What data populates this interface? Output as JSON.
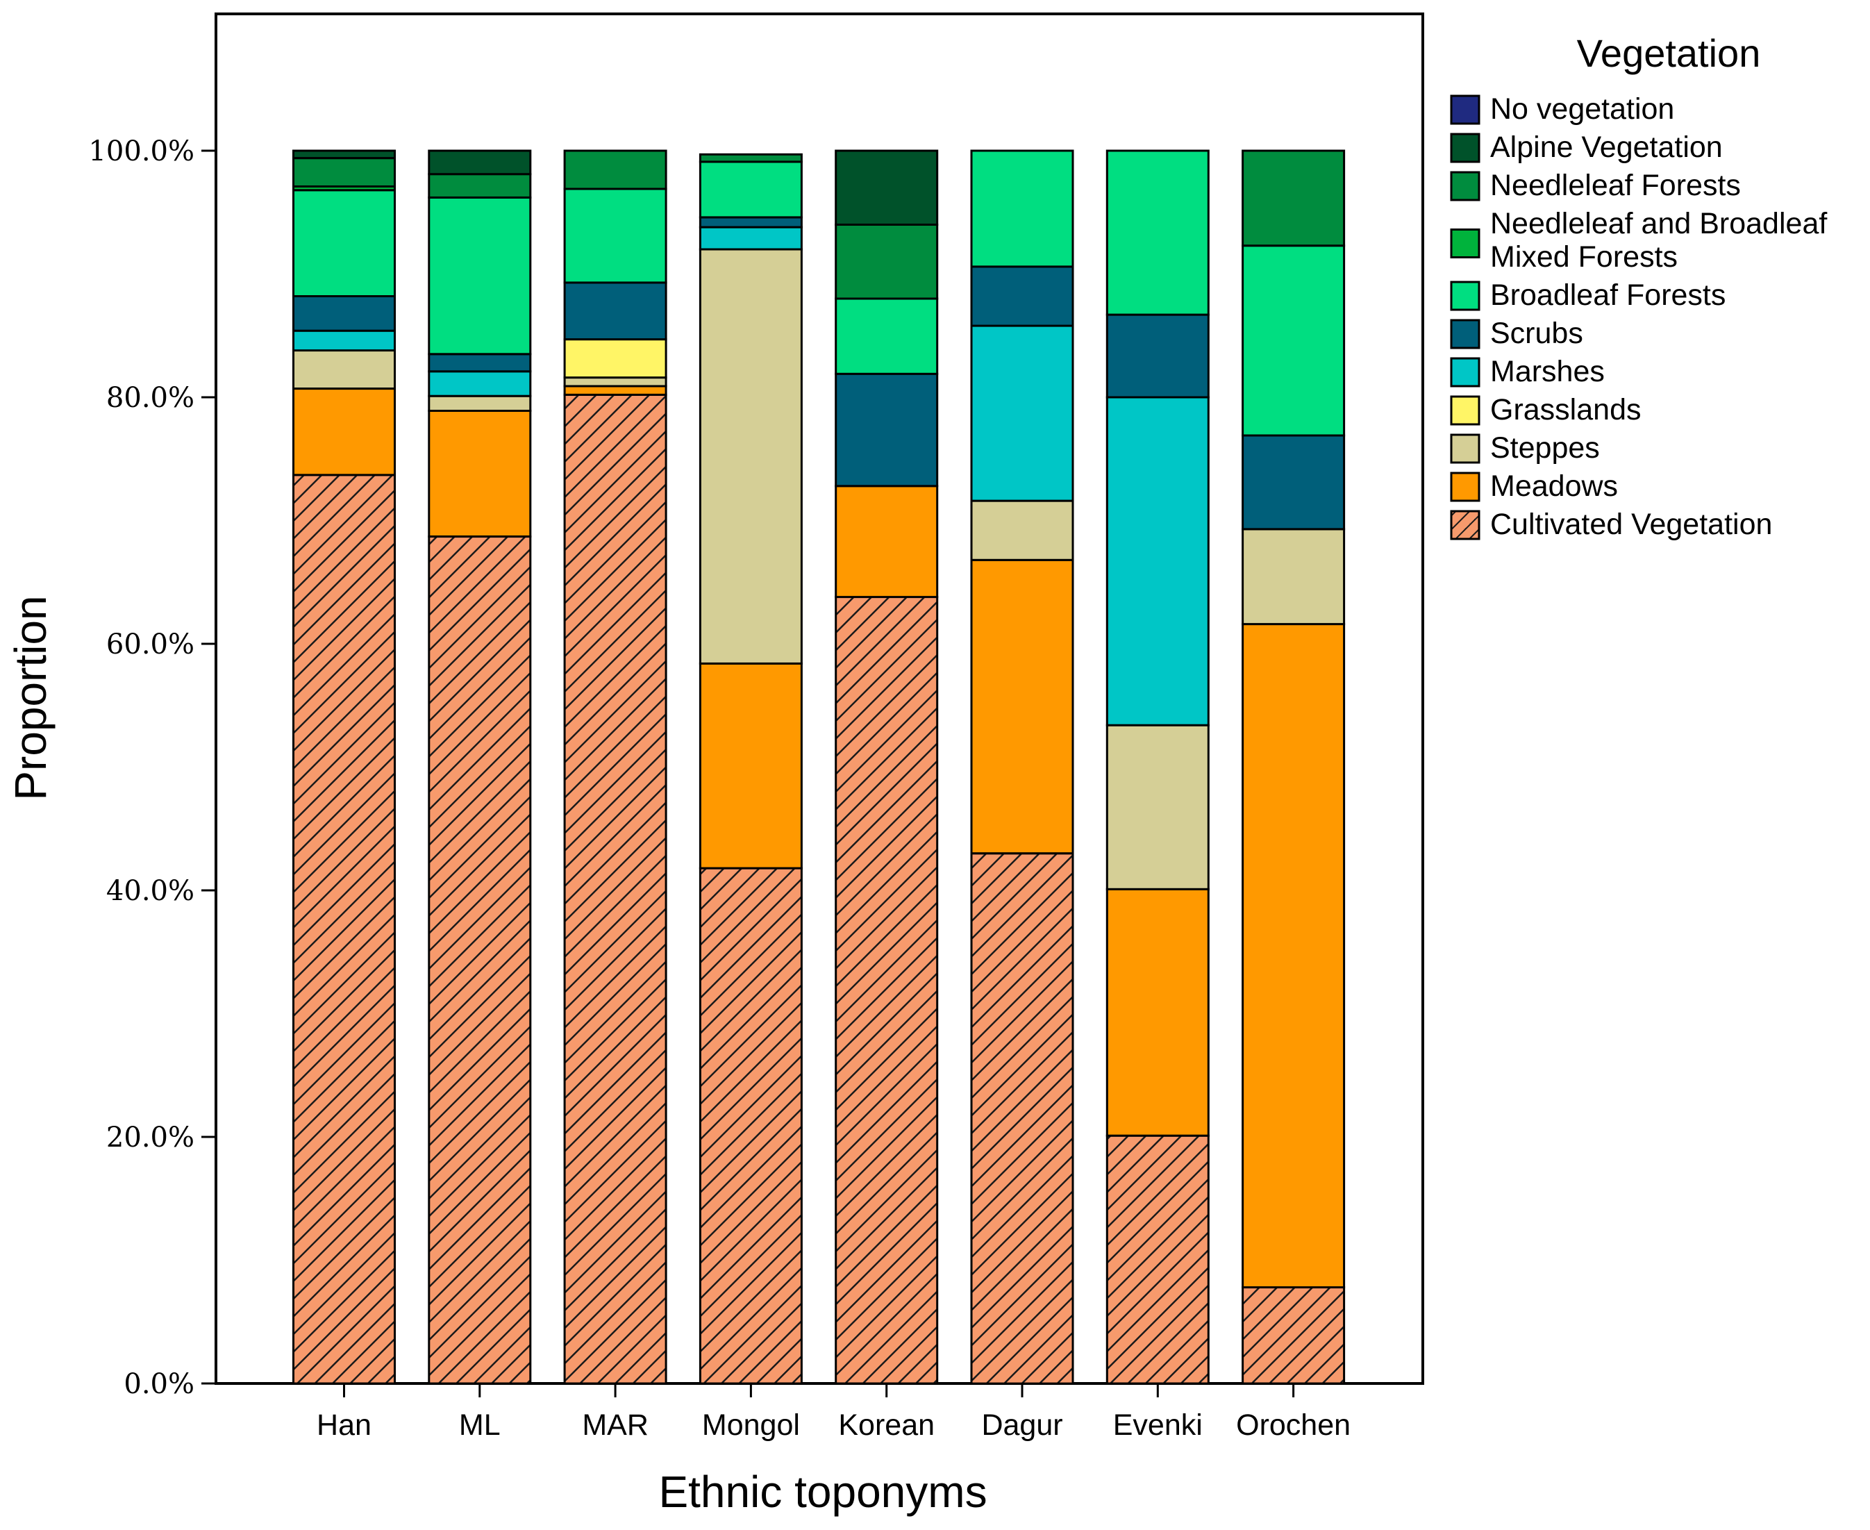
{
  "chart_data": {
    "type": "bar",
    "stacked": true,
    "xlabel": "Ethnic toponyms",
    "ylabel": "Proportion",
    "ylim": [
      0,
      100
    ],
    "yticks": [
      0,
      20,
      40,
      60,
      80,
      100
    ],
    "ytick_labels": [
      "0.0%",
      "20.0%",
      "40.0%",
      "60.0%",
      "80.0%",
      "100.0%"
    ],
    "categories": [
      "Han",
      "ML",
      "MAR",
      "Mongol",
      "Korean",
      "Dagur",
      "Evenki",
      "Orochen"
    ],
    "legend": {
      "title": "Vegetation",
      "position": "top-right"
    },
    "series": [
      {
        "name": "Cultivated Vegetation",
        "color": "#F79A6C",
        "pattern": "hatch",
        "values": [
          73.7,
          68.7,
          80.2,
          41.8,
          63.8,
          43.0,
          20.1,
          7.8
        ]
      },
      {
        "name": "Meadows",
        "color": "#FF9900",
        "values": [
          7.0,
          10.2,
          0.7,
          16.6,
          9.0,
          23.8,
          20.0,
          53.8
        ]
      },
      {
        "name": "Steppes",
        "color": "#D5CF96",
        "values": [
          3.1,
          1.2,
          0.7,
          33.6,
          0.0,
          4.8,
          13.3,
          7.7
        ]
      },
      {
        "name": "Grasslands",
        "color": "#FFF566",
        "values": [
          0.0,
          0.0,
          3.1,
          0.0,
          0.0,
          0.0,
          0.0,
          0.0
        ]
      },
      {
        "name": "Marshes",
        "color": "#00C6C6",
        "values": [
          1.6,
          2.0,
          0.0,
          1.8,
          0.0,
          14.2,
          26.6,
          0.0
        ]
      },
      {
        "name": "Scrubs",
        "color": "#005F7A",
        "values": [
          2.8,
          1.4,
          4.6,
          0.8,
          9.1,
          4.8,
          6.7,
          7.6
        ]
      },
      {
        "name": "Broadleaf Forests",
        "color": "#00DE81",
        "values": [
          8.6,
          12.7,
          7.6,
          4.5,
          6.1,
          9.4,
          13.3,
          15.4
        ]
      },
      {
        "name": "Needleleaf and Broadleaf Mixed Forests",
        "color": "#00B33C",
        "values": [
          0.3,
          0.0,
          0.0,
          0.0,
          0.0,
          0.0,
          0.0,
          0.0
        ]
      },
      {
        "name": "Needleleaf Forests",
        "color": "#008C3E",
        "values": [
          2.3,
          1.9,
          3.1,
          0.6,
          6.0,
          0.0,
          0.0,
          7.7
        ]
      },
      {
        "name": "Alpine Vegetation",
        "color": "#00522A",
        "values": [
          0.6,
          1.9,
          0.0,
          0.0,
          6.0,
          0.0,
          0.0,
          0.0
        ]
      },
      {
        "name": "No vegetation",
        "color": "#1F2A80",
        "values": [
          0.0,
          0.0,
          0.0,
          0.0,
          0.0,
          0.0,
          0.0,
          0.0
        ]
      }
    ]
  }
}
